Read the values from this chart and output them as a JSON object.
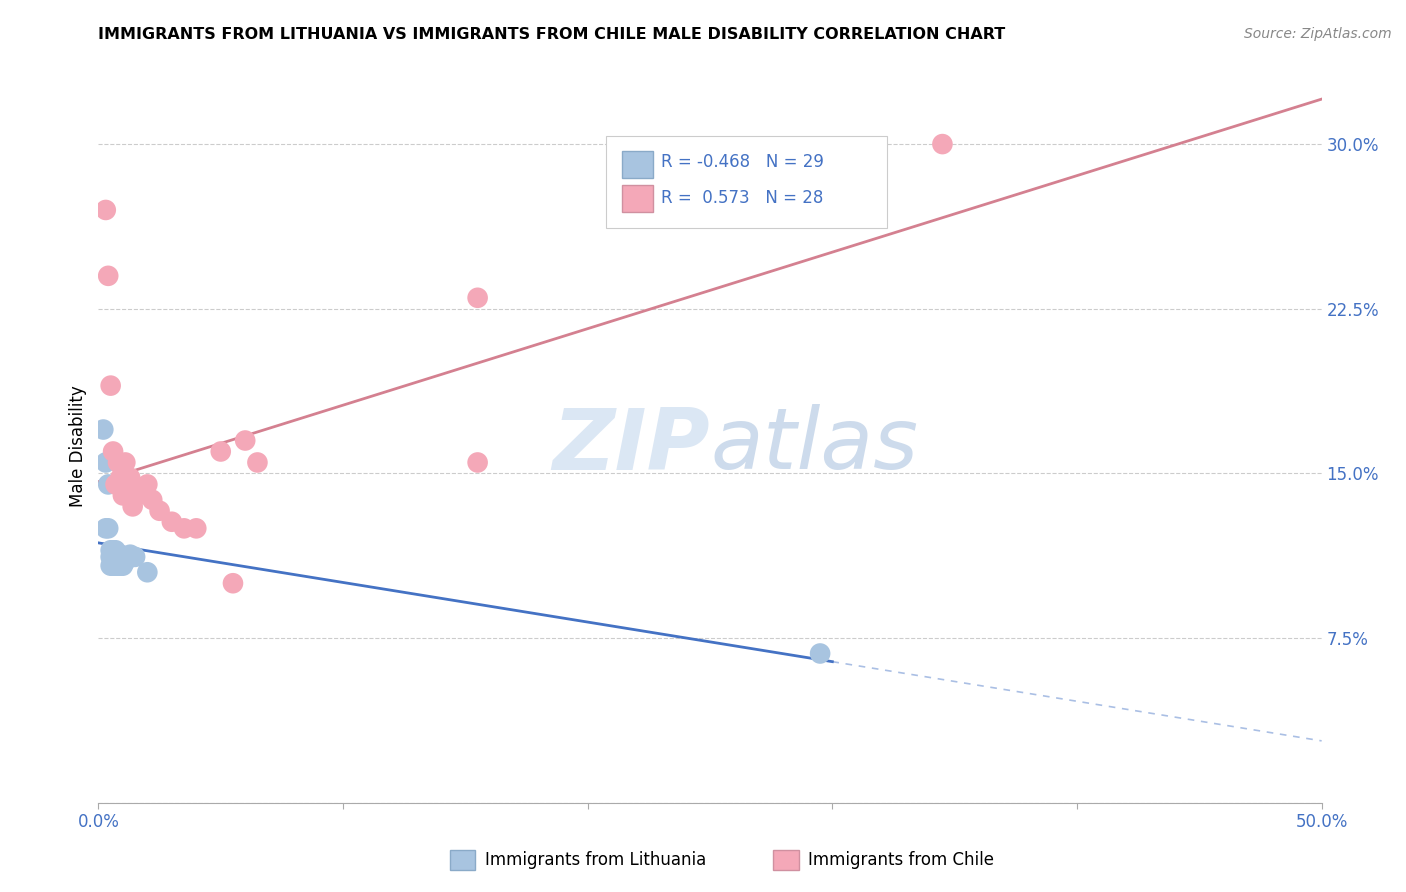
{
  "title": "IMMIGRANTS FROM LITHUANIA VS IMMIGRANTS FROM CHILE MALE DISABILITY CORRELATION CHART",
  "source": "Source: ZipAtlas.com",
  "ylabel": "Male Disability",
  "xlim": [
    0.0,
    0.5
  ],
  "ylim": [
    0.0,
    0.325
  ],
  "yticks": [
    0.0,
    0.075,
    0.15,
    0.225,
    0.3
  ],
  "ytick_labels": [
    "",
    "7.5%",
    "15.0%",
    "22.5%",
    "30.0%"
  ],
  "xticks": [
    0.0,
    0.1,
    0.2,
    0.3,
    0.4,
    0.5
  ],
  "xtick_labels": [
    "0.0%",
    "",
    "",
    "",
    "",
    "50.0%"
  ],
  "legend_label1": "Immigrants from Lithuania",
  "legend_label2": "Immigrants from Chile",
  "watermark": "ZIPatlas",
  "blue_scatter": "#a8c4e0",
  "pink_scatter": "#f4a8b8",
  "blue_line_color": "#4472C4",
  "pink_line_color": "#d48090",
  "blue_r": "-0.468",
  "blue_n": "29",
  "pink_r": "0.573",
  "pink_n": "28",
  "lithuania_x": [
    0.002,
    0.003,
    0.003,
    0.004,
    0.004,
    0.005,
    0.005,
    0.005,
    0.006,
    0.006,
    0.006,
    0.007,
    0.007,
    0.007,
    0.007,
    0.008,
    0.008,
    0.008,
    0.009,
    0.009,
    0.01,
    0.01,
    0.011,
    0.011,
    0.012,
    0.013,
    0.015,
    0.02,
    0.295
  ],
  "lithuania_y": [
    0.17,
    0.155,
    0.125,
    0.145,
    0.125,
    0.115,
    0.112,
    0.108,
    0.115,
    0.112,
    0.108,
    0.115,
    0.112,
    0.11,
    0.108,
    0.113,
    0.112,
    0.108,
    0.112,
    0.108,
    0.112,
    0.108,
    0.112,
    0.11,
    0.112,
    0.113,
    0.112,
    0.105,
    0.068
  ],
  "chile_x": [
    0.003,
    0.004,
    0.005,
    0.006,
    0.007,
    0.008,
    0.009,
    0.01,
    0.011,
    0.012,
    0.013,
    0.014,
    0.015,
    0.016,
    0.018,
    0.02,
    0.022,
    0.025,
    0.03,
    0.035,
    0.04,
    0.05,
    0.055,
    0.06,
    0.065,
    0.155,
    0.155,
    0.345
  ],
  "chile_y": [
    0.27,
    0.24,
    0.19,
    0.16,
    0.145,
    0.155,
    0.148,
    0.14,
    0.155,
    0.148,
    0.148,
    0.135,
    0.14,
    0.14,
    0.143,
    0.145,
    0.138,
    0.133,
    0.128,
    0.125,
    0.125,
    0.16,
    0.1,
    0.165,
    0.155,
    0.23,
    0.155,
    0.3
  ]
}
